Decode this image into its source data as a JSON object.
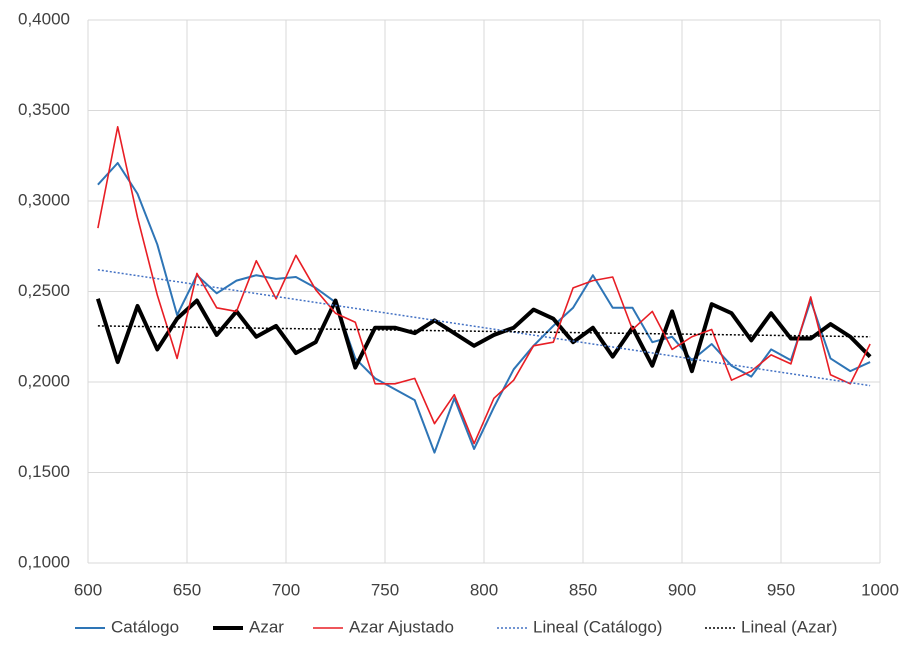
{
  "chart_data": {
    "type": "line",
    "x": [
      605,
      615,
      625,
      635,
      645,
      655,
      665,
      675,
      685,
      695,
      705,
      715,
      725,
      735,
      745,
      755,
      765,
      775,
      785,
      795,
      805,
      815,
      825,
      835,
      845,
      855,
      865,
      875,
      885,
      895,
      905,
      915,
      925,
      935,
      945,
      955,
      965,
      975,
      985,
      995
    ],
    "series": [
      {
        "name": "Catálogo",
        "color": "#2e75b6",
        "linewidth": 2,
        "style": "solid",
        "values": [
          0.309,
          0.321,
          0.304,
          0.276,
          0.237,
          0.259,
          0.249,
          0.256,
          0.259,
          0.257,
          0.258,
          0.252,
          0.244,
          0.213,
          0.202,
          0.196,
          0.19,
          0.161,
          0.191,
          0.163,
          0.186,
          0.207,
          0.22,
          0.231,
          0.241,
          0.259,
          0.241,
          0.241,
          0.222,
          0.225,
          0.212,
          0.221,
          0.209,
          0.203,
          0.218,
          0.212,
          0.245,
          0.213,
          0.206,
          0.211
        ]
      },
      {
        "name": "Azar",
        "color": "#000000",
        "linewidth": 4,
        "style": "solid",
        "values": [
          0.246,
          0.211,
          0.242,
          0.218,
          0.235,
          0.245,
          0.226,
          0.239,
          0.225,
          0.231,
          0.216,
          0.222,
          0.245,
          0.208,
          0.23,
          0.23,
          0.227,
          0.234,
          0.227,
          0.22,
          0.226,
          0.23,
          0.24,
          0.235,
          0.222,
          0.23,
          0.214,
          0.23,
          0.209,
          0.239,
          0.206,
          0.243,
          0.238,
          0.223,
          0.238,
          0.224,
          0.224,
          0.232,
          0.225,
          0.214
        ]
      },
      {
        "name": "Azar Ajustado",
        "color": "#e81e25",
        "linewidth": 1.6,
        "style": "solid",
        "values": [
          0.285,
          0.341,
          0.291,
          0.248,
          0.213,
          0.26,
          0.241,
          0.239,
          0.267,
          0.246,
          0.27,
          0.251,
          0.238,
          0.233,
          0.199,
          0.199,
          0.202,
          0.177,
          0.193,
          0.166,
          0.191,
          0.201,
          0.22,
          0.222,
          0.252,
          0.256,
          0.258,
          0.229,
          0.239,
          0.218,
          0.225,
          0.229,
          0.201,
          0.206,
          0.215,
          0.21,
          0.247,
          0.204,
          0.199,
          0.221
        ]
      },
      {
        "name": "Lineal (Catálogo)",
        "color": "#4472c4",
        "linewidth": 1.5,
        "style": "dotted",
        "x": [
          605,
          995
        ],
        "values": [
          0.262,
          0.198
        ]
      },
      {
        "name": "Lineal (Azar)",
        "color": "#000000",
        "linewidth": 1.5,
        "style": "dotted",
        "x": [
          605,
          995
        ],
        "values": [
          0.231,
          0.225
        ]
      }
    ],
    "xlim": [
      600,
      1000
    ],
    "xticks": [
      600,
      650,
      700,
      750,
      800,
      850,
      900,
      950,
      1000
    ],
    "ylim": [
      0.1,
      0.4
    ],
    "yticks": [
      {
        "value": 0.1,
        "label": "0,1000"
      },
      {
        "value": 0.15,
        "label": "0,1500"
      },
      {
        "value": 0.2,
        "label": "0,2000"
      },
      {
        "value": 0.25,
        "label": "0,2500"
      },
      {
        "value": 0.3,
        "label": "0,3000"
      },
      {
        "value": 0.35,
        "label": "0,3500"
      },
      {
        "value": 0.4,
        "label": "0,4000"
      }
    ],
    "grid": true,
    "legend": "bottom"
  }
}
